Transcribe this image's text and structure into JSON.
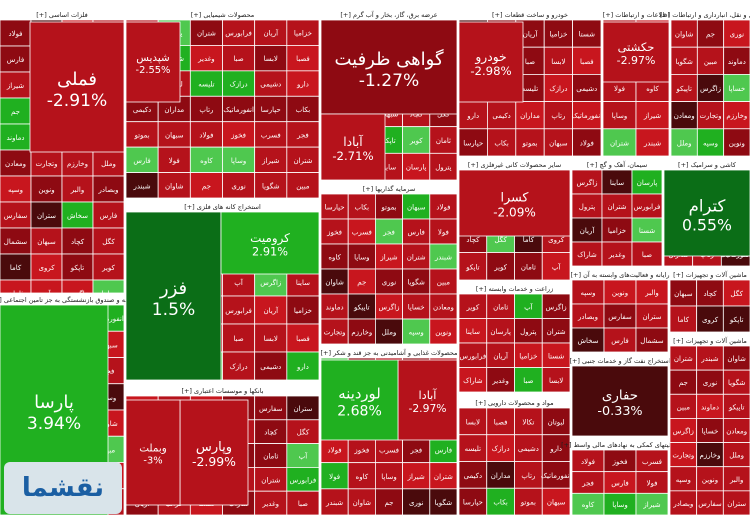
{
  "chart_data": {
    "type": "heatmap",
    "title": "",
    "colors": {
      "deep_red": "#8e0a12",
      "red": "#b5121b",
      "mid_red": "#c8161e",
      "dark_maroon": "#4a0a0c",
      "green": "#20b020",
      "light_green": "#4fc84f",
      "dark_green": "#0b6e17",
      "header_bg": "#ffffff",
      "border": "#ffffff"
    },
    "sectors": [
      {
        "name": "فلزات اساسی",
        "symbol": "[+]"
      },
      {
        "name": "محصولات شیمیایی",
        "symbol": "[+]"
      },
      {
        "name": "عرضه برق، گاز، بخار و آب گرم",
        "symbol": "[+]"
      },
      {
        "name": "خودرو و ساخت قطعات",
        "symbol": "[+]"
      },
      {
        "name": "اطلاعات و ارتباطات",
        "symbol": "[+]"
      },
      {
        "name": "حمل و نقل، انبارداری و ارتباطات",
        "symbol": "[+]"
      },
      {
        "name": "سایر محصولات کانی غیرفلزی",
        "symbol": "[+]"
      },
      {
        "name": "سیمان، آهک و گچ",
        "symbol": "[+]"
      },
      {
        "name": "کاشی و سرامیک",
        "symbol": "[+]"
      },
      {
        "name": "سرمایه گذاریها",
        "symbol": "[+]"
      },
      {
        "name": "استخراج کانه های فلزی",
        "symbol": "[+]"
      },
      {
        "name": "بیمه و صندوق بازنشستگی به جز تامین اجتماعی",
        "symbol": "[+]"
      },
      {
        "name": "رایانه و فعالیت‌های وابسته به آن",
        "symbol": "[+]"
      },
      {
        "name": "ماشین آلات و تجهیزات",
        "symbol": "[+]"
      },
      {
        "name": "زراعت و خدمات وابسته",
        "symbol": "[+]"
      },
      {
        "name": "محصولات غذایی و آشامیدنی به جز قند و شکر",
        "symbol": "[+]"
      },
      {
        "name": "استخراج نفت گاز و خدمات جنبی",
        "symbol": "[+]"
      },
      {
        "name": "بانکها و موسسات اعتباری",
        "symbol": "[+]"
      },
      {
        "name": "مواد و محصولات دارویی",
        "symbol": "[+]"
      },
      {
        "name": "فعالیتهای کمکی به نهادهای مالی واسط",
        "symbol": "[+]"
      }
    ],
    "featured": [
      {
        "symbol": "فملی",
        "change": "-2.91%",
        "color": "red"
      },
      {
        "symbol": "گواهی ظرفیت",
        "change": "-1.27%",
        "color": "deep_red"
      },
      {
        "symbol": "حکشتی",
        "change": "-2.97%",
        "color": "red"
      },
      {
        "symbol": "خودرو",
        "change": "-2.98%",
        "color": "red"
      },
      {
        "symbol": "شپدیس",
        "change": "-2.55%",
        "color": "red"
      },
      {
        "symbol": "کسرا",
        "change": "-2.09%",
        "color": "red"
      },
      {
        "symbol": "کترام",
        "change": "0.55%",
        "color": "dark_green"
      },
      {
        "symbol": "فزر",
        "change": "1.5%",
        "color": "dark_green"
      },
      {
        "symbol": "کرومیت",
        "change": "2.91%",
        "color": "green"
      },
      {
        "symbol": "پارسا",
        "change": "3.94%",
        "color": "green"
      },
      {
        "symbol": "حفاری",
        "change": "-0.33%",
        "color": "dark_maroon"
      },
      {
        "symbol": "وپارس",
        "change": "-2.99%",
        "color": "red"
      },
      {
        "symbol": "وبملت",
        "change": "-3%",
        "color": "red"
      },
      {
        "symbol": "آبادا",
        "change": "-2.97%",
        "color": "red"
      },
      {
        "symbol": "لوردینه",
        "change": "2.68%",
        "color": "green"
      },
      {
        "symbol": "آبادا",
        "change": "-2.71%",
        "color": "red"
      }
    ],
    "small_symbols": [
      "فولاد",
      "فخوز",
      "فسرب",
      "فجر",
      "فارس",
      "فولا",
      "کاوه",
      "وساپا",
      "شیراز",
      "شتران",
      "شبندر",
      "شاوان",
      "جم",
      "نوری",
      "شگویا",
      "مبین",
      "دماوند",
      "تاپیکو",
      "زاگرس",
      "خساپا",
      "ومعادن",
      "وتجارت",
      "وخارزم",
      "وملل",
      "وسپه",
      "ونوین",
      "والبر",
      "وبصادر",
      "سفارس",
      "ستران",
      "سخاش",
      "فارس",
      "سشمال",
      "سبهان",
      "کچاد",
      "کگل",
      "کاما",
      "کروی",
      "تاپکو",
      "کویر",
      "ثامان",
      "آپ",
      "زاگرس",
      "ساینا",
      "پارسان",
      "پترول",
      "شتران",
      "فرابورس",
      "آریان",
      "خزامیا",
      "شستا",
      "شاراک",
      "وغدیر",
      "صبا",
      "لابسا",
      "فصبا",
      "تکالا",
      "لبوتان",
      "تلیسه",
      "درازک",
      "دشیمی",
      "دارو",
      "دکیمی",
      "مداران",
      "رتاپ",
      "انفورماتیک",
      "حپارسا",
      "بکاب",
      "بموتو",
      "سبهان"
    ]
  }
}
